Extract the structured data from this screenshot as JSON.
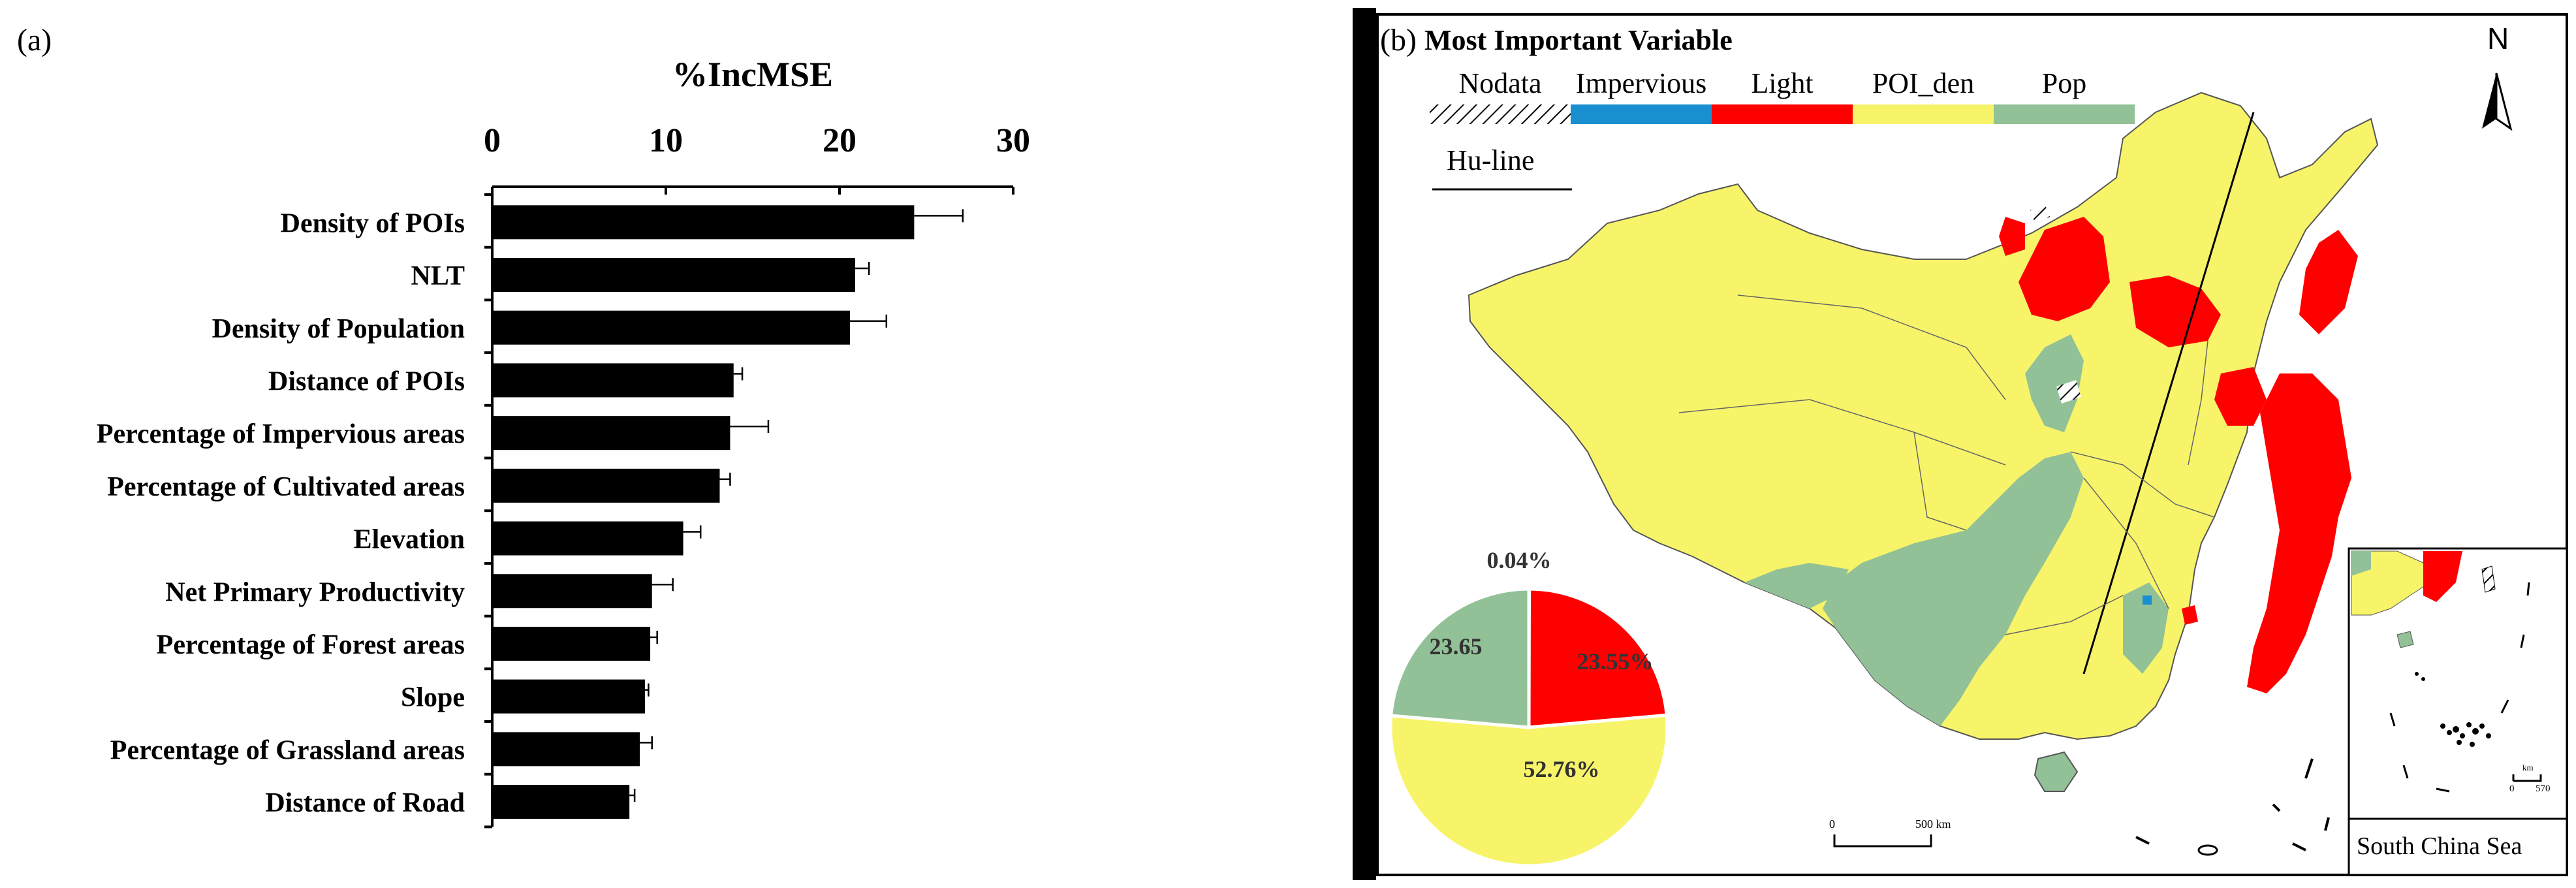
{
  "panel_a_label": "(a)",
  "panel_b_label": "(b)",
  "chart_data": [
    {
      "type": "bar",
      "orientation": "horizontal",
      "title": "%IncMSE",
      "xlim": [
        0,
        30
      ],
      "xticks": [
        0,
        10,
        20,
        30
      ],
      "categories": [
        "Density of POIs",
        "NLT",
        "Density of Population",
        "Distance of POIs",
        "Percentage of Impervious areas",
        "Percentage of Cultivated areas",
        "Elevation",
        "Net Primary Productivity",
        "Percentage of Forest areas",
        "Slope",
        "Percentage of Grassland areas",
        "Distance of Road"
      ],
      "values": [
        24.3,
        20.9,
        20.6,
        13.9,
        13.7,
        13.1,
        11.0,
        9.2,
        9.1,
        8.8,
        8.5,
        7.9
      ],
      "errors": [
        2.8,
        0.8,
        2.1,
        0.5,
        2.2,
        0.6,
        1.0,
        1.2,
        0.4,
        0.2,
        0.7,
        0.3
      ],
      "bar_color": "#000000"
    },
    {
      "type": "pie",
      "title": "Most Important Variable",
      "categories": [
        "Nodata",
        "Impervious",
        "Light",
        "POI_den",
        "Pop"
      ],
      "slices": [
        {
          "name": "Impervious",
          "value": 0.04,
          "label": "0.04%",
          "color": "#1a8fd0"
        },
        {
          "name": "Light",
          "value": 23.55,
          "label": "23.55%",
          "color": "#ff0000"
        },
        {
          "name": "POI_den",
          "value": 52.76,
          "label": "52.76%",
          "color": "#f7f46a"
        },
        {
          "name": "Pop",
          "value": 23.65,
          "label": "23.65",
          "color": "#92c197"
        }
      ]
    }
  ],
  "map": {
    "title": "Most Important Variable",
    "legend": [
      {
        "label": "Nodata",
        "pattern": "hatch",
        "color": "#000000"
      },
      {
        "label": "Impervious",
        "color": "#1a8fd0"
      },
      {
        "label": "Light",
        "color": "#ff0000"
      },
      {
        "label": "POI_den",
        "color": "#f7f46a"
      },
      {
        "label": "Pop",
        "color": "#92c197"
      }
    ],
    "huline_label": "Hu-line",
    "north_label": "N",
    "scale_labels": [
      "0",
      "500 km"
    ],
    "inset_title": "South China Sea",
    "inset_scale_labels": [
      "0",
      "570"
    ],
    "inset_scale_unit": "km"
  }
}
